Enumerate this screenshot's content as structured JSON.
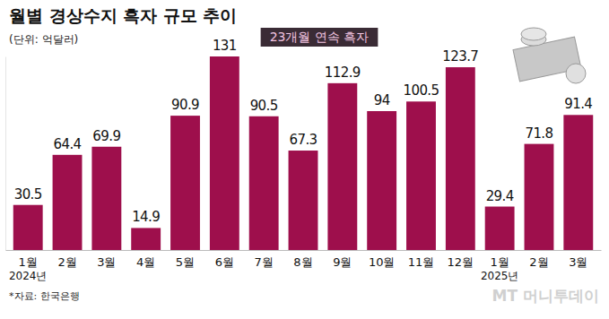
{
  "chart_data": {
    "type": "bar",
    "title": "월별 경상수지 흑자 규모 추이",
    "subtitle": "(단위: 억달러)",
    "annotations": [
      "23개월 연속 흑자"
    ],
    "source": "*자료: 한국은행",
    "credit": "MT 머니투데이",
    "categories": [
      "1월\n2024년",
      "2월",
      "3월",
      "4월",
      "5월",
      "6월",
      "7월",
      "8월",
      "9월",
      "10월",
      "11월",
      "12월",
      "1월\n2025년",
      "2월",
      "3월"
    ],
    "values": [
      30.5,
      64.4,
      69.9,
      14.9,
      90.9,
      131,
      90.5,
      67.3,
      112.9,
      94,
      100.5,
      123.7,
      29.4,
      71.8,
      91.4
    ],
    "color": "#9e0f4c",
    "ylim": [
      0,
      131
    ],
    "yticks": [
      0
    ],
    "grid": false,
    "data_labels": true,
    "tick_labels": "x"
  }
}
